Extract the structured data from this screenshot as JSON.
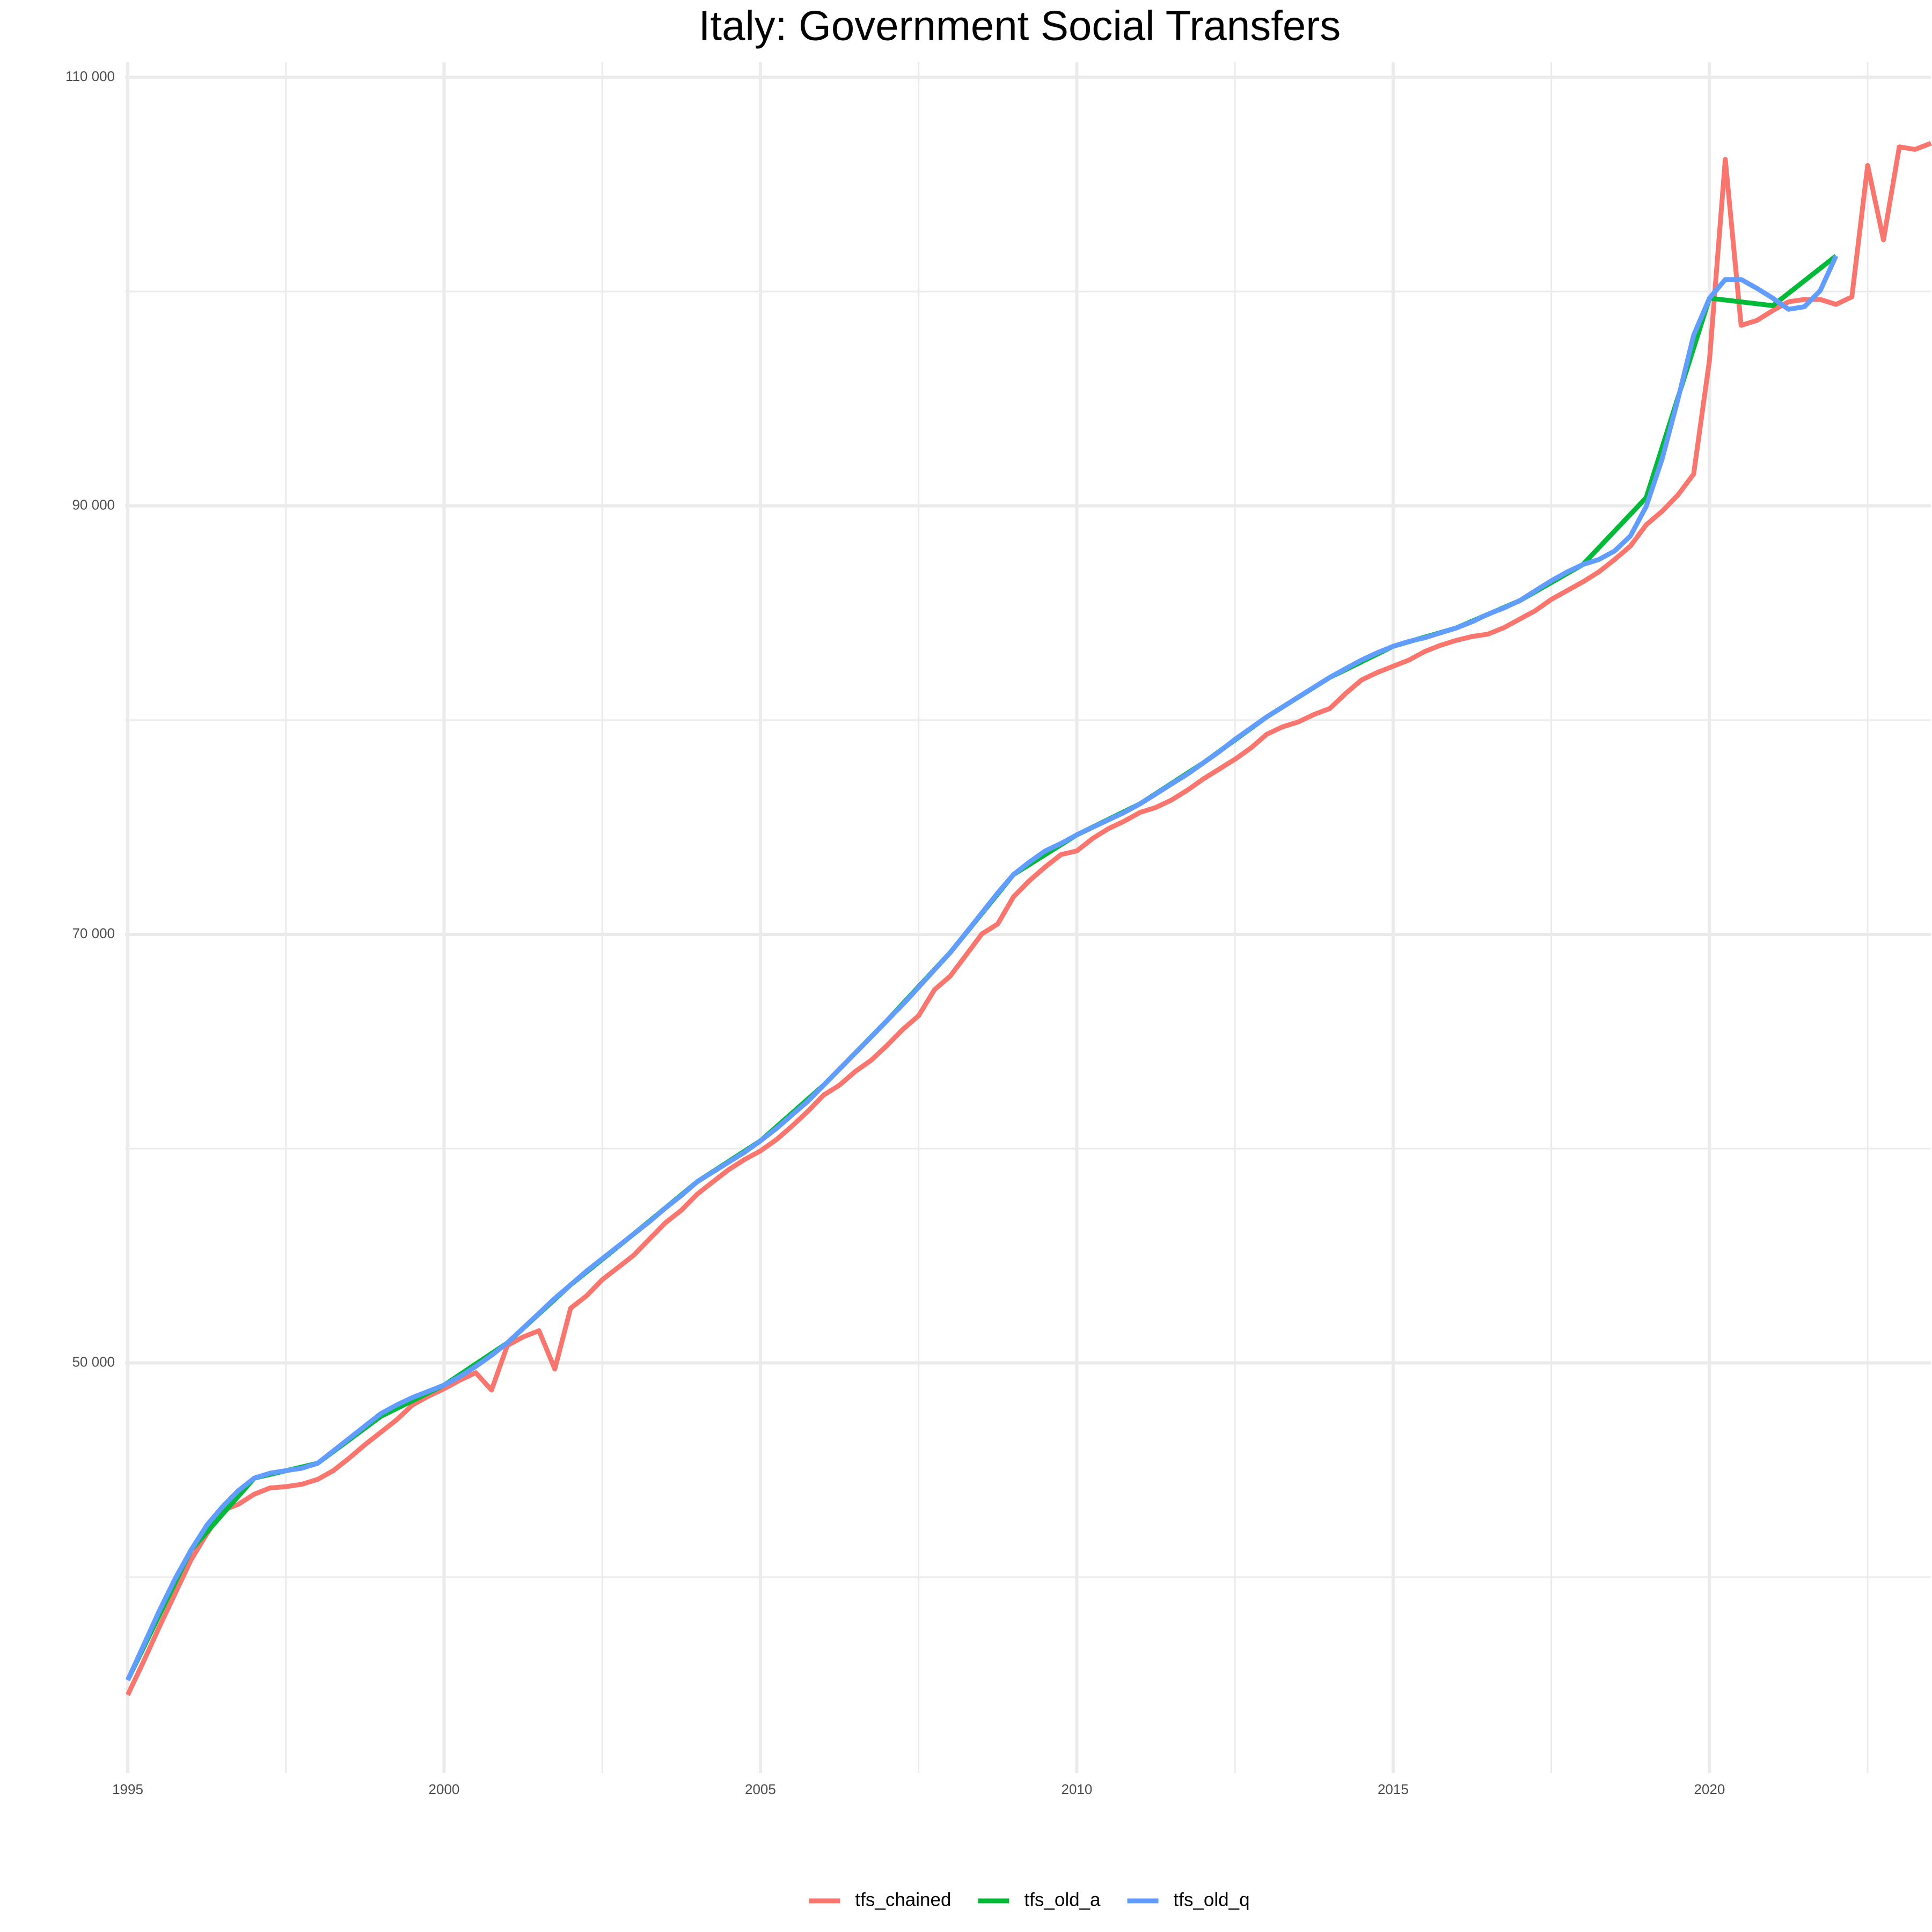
{
  "chart_data": {
    "type": "line",
    "title": "Italy: Government Social Transfers",
    "xlim": [
      1995,
      2023.5
    ],
    "xticks": [
      1995,
      2000,
      2005,
      2010,
      2015,
      2020
    ],
    "x_minor_grid": [
      1997.5,
      2002.5,
      2007.5,
      2012.5,
      2017.5,
      2022.5
    ],
    "ylim": [
      30850,
      110700
    ],
    "yticks": [
      {
        "value": 50000,
        "label": "50 000"
      },
      {
        "value": 70000,
        "label": "70 000"
      },
      {
        "value": 90000,
        "label": "90 000"
      },
      {
        "value": 110000,
        "label": "110 000"
      }
    ],
    "y_minor_grid": [
      40000,
      60000,
      80000,
      100000
    ],
    "grid": true,
    "legend": "bottom",
    "series": [
      {
        "name": "tfs_chained",
        "color": "#F8766D",
        "x": [
          1995,
          1995.25,
          1995.5,
          1995.75,
          1996,
          1996.25,
          1996.5,
          1996.75,
          1997,
          1997.25,
          1997.5,
          1997.75,
          1998,
          1998.25,
          1998.5,
          1998.75,
          1999,
          1999.25,
          1999.5,
          1999.75,
          2000,
          2000.25,
          2000.5,
          2000.75,
          2001,
          2001.25,
          2001.5,
          2001.75,
          2002,
          2002.25,
          2002.5,
          2002.75,
          2003,
          2003.25,
          2003.5,
          2003.75,
          2004,
          2004.25,
          2004.5,
          2004.75,
          2005,
          2005.25,
          2005.5,
          2005.75,
          2006,
          2006.25,
          2006.5,
          2006.75,
          2007,
          2007.25,
          2007.5,
          2007.75,
          2008,
          2008.25,
          2008.5,
          2008.75,
          2009,
          2009.25,
          2009.5,
          2009.75,
          2010,
          2010.25,
          2010.5,
          2010.75,
          2011,
          2011.25,
          2011.5,
          2011.75,
          2012,
          2012.25,
          2012.5,
          2012.75,
          2013,
          2013.25,
          2013.5,
          2013.75,
          2014,
          2014.25,
          2014.5,
          2014.75,
          2015,
          2015.25,
          2015.5,
          2015.75,
          2016,
          2016.25,
          2016.5,
          2016.75,
          2017,
          2017.25,
          2017.5,
          2017.75,
          2018,
          2018.25,
          2018.5,
          2018.75,
          2019,
          2019.25,
          2019.5,
          2019.75,
          2020,
          2020.25,
          2020.5,
          2020.75,
          2021,
          2021.25,
          2021.5,
          2021.75,
          2022,
          2022.25,
          2022.5,
          2022.75,
          2023,
          2023.25,
          2023.5
        ],
        "values": [
          34500,
          36060,
          37680,
          39240,
          40800,
          42020,
          43110,
          43400,
          43870,
          44160,
          44220,
          44330,
          44560,
          44970,
          45550,
          46180,
          46760,
          47340,
          48030,
          48440,
          48790,
          49190,
          49540,
          48730,
          50810,
          51210,
          51500,
          49710,
          52550,
          53120,
          53880,
          54450,
          55030,
          55790,
          56540,
          57120,
          57870,
          58450,
          59020,
          59490,
          59890,
          60410,
          61050,
          61740,
          62500,
          62960,
          63600,
          64120,
          64810,
          65560,
          66200,
          67410,
          68050,
          69030,
          70020,
          70480,
          71750,
          72500,
          73140,
          73720,
          73890,
          74470,
          74930,
          75280,
          75690,
          75920,
          76270,
          76730,
          77250,
          77710,
          78170,
          78690,
          79330,
          79680,
          79910,
          80260,
          80540,
          81240,
          81870,
          82220,
          82510,
          82800,
          83200,
          83490,
          83720,
          83900,
          84010,
          84310,
          84710,
          85110,
          85630,
          86040,
          86450,
          86910,
          87490,
          88120,
          89110,
          89740,
          90500,
          91480,
          96800,
          106170,
          98420,
          98650,
          99110,
          99520,
          99630,
          99630,
          99400,
          99750,
          105880,
          102410,
          106750,
          106630,
          106920
        ]
      },
      {
        "name": "tfs_old_a",
        "color": "#00BA38",
        "x": [
          1995,
          1996,
          1997,
          1998,
          1999,
          2000,
          2001,
          2002,
          2003,
          2004,
          2005,
          2006,
          2007,
          2008,
          2009,
          2010,
          2011,
          2012,
          2013,
          2014,
          2015,
          2016,
          2017,
          2018,
          2019,
          2020,
          2021,
          2022
        ],
        "values": [
          35190,
          41260,
          44620,
          45310,
          47500,
          48960,
          50930,
          53640,
          56020,
          58450,
          60360,
          62960,
          65970,
          69150,
          72790,
          74640,
          76090,
          78000,
          80140,
          81990,
          83440,
          84300,
          85570,
          87260,
          90380,
          99690,
          99340,
          101660
        ]
      },
      {
        "name": "tfs_old_q",
        "color": "#619CFF",
        "x": [
          1995,
          1995.25,
          1995.5,
          1995.75,
          1996,
          1996.25,
          1996.5,
          1996.75,
          1997,
          1997.25,
          1997.5,
          1997.75,
          1998,
          1998.25,
          1998.5,
          1998.75,
          1999,
          1999.25,
          1999.5,
          1999.75,
          2000,
          2000.25,
          2000.5,
          2000.75,
          2001,
          2001.25,
          2001.5,
          2001.75,
          2002,
          2002.25,
          2002.5,
          2002.75,
          2003,
          2003.25,
          2003.5,
          2003.75,
          2004,
          2004.25,
          2004.5,
          2004.75,
          2005,
          2005.25,
          2005.5,
          2005.75,
          2006,
          2006.25,
          2006.5,
          2006.75,
          2007,
          2007.25,
          2007.5,
          2007.75,
          2008,
          2008.25,
          2008.5,
          2008.75,
          2009,
          2009.25,
          2009.5,
          2009.75,
          2010,
          2010.25,
          2010.5,
          2010.75,
          2011,
          2011.25,
          2011.5,
          2011.75,
          2012,
          2012.25,
          2012.5,
          2012.75,
          2013,
          2013.25,
          2013.5,
          2013.75,
          2014,
          2014.25,
          2014.5,
          2014.75,
          2015,
          2015.25,
          2015.5,
          2015.75,
          2016,
          2016.25,
          2016.5,
          2016.75,
          2017,
          2017.25,
          2017.5,
          2017.75,
          2018,
          2018.25,
          2018.5,
          2018.75,
          2019,
          2019.25,
          2019.5,
          2019.75,
          2020,
          2020.25,
          2020.5,
          2020.75,
          2021,
          2021.25,
          2021.5,
          2021.75,
          2022
        ],
        "values": [
          35190,
          36810,
          38430,
          39930,
          41260,
          42420,
          43290,
          44040,
          44620,
          44850,
          44970,
          45080,
          45310,
          45890,
          46470,
          47050,
          47630,
          48030,
          48380,
          48670,
          48960,
          49360,
          49830,
          50350,
          50930,
          51620,
          52310,
          53010,
          53640,
          54280,
          54860,
          55440,
          56020,
          56600,
          57230,
          57810,
          58450,
          58910,
          59370,
          59830,
          60360,
          60930,
          61570,
          62210,
          62960,
          63710,
          64460,
          65210,
          65970,
          66720,
          67530,
          68340,
          69150,
          70070,
          71000,
          71930,
          72790,
          73370,
          73890,
          74240,
          74640,
          74990,
          75340,
          75690,
          76090,
          76550,
          77020,
          77480,
          78000,
          78520,
          79100,
          79620,
          80140,
          80600,
          81070,
          81530,
          81990,
          82400,
          82800,
          83140,
          83440,
          83670,
          83840,
          84070,
          84300,
          84590,
          84940,
          85230,
          85570,
          86040,
          86500,
          86910,
          87260,
          87490,
          87890,
          88590,
          89970,
          92170,
          94950,
          97960,
          99690,
          100560,
          100560,
          100150,
          99690,
          99170,
          99290,
          100040,
          101660
        ]
      }
    ]
  }
}
